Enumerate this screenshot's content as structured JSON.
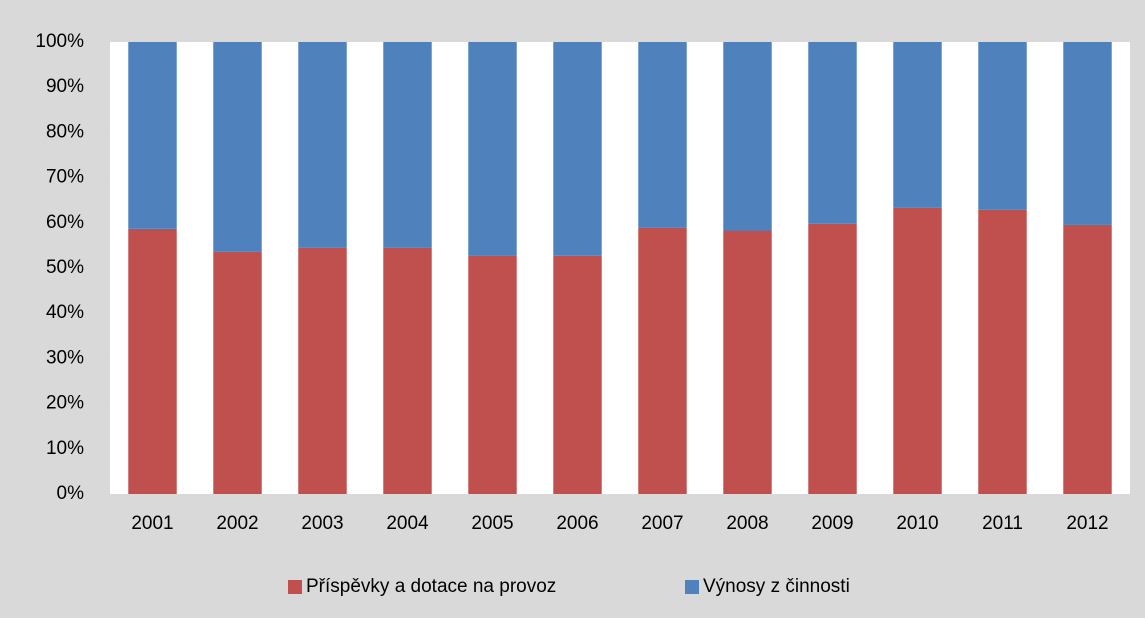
{
  "chart_data": {
    "type": "stacked_bar",
    "categories": [
      "2001",
      "2002",
      "2003",
      "2004",
      "2005",
      "2006",
      "2007",
      "2008",
      "2009",
      "2010",
      "2011",
      "2012"
    ],
    "series": [
      {
        "name": "Příspěvky a dotace na provoz",
        "color": "#c0504d",
        "values": [
          58.7,
          53.7,
          54.6,
          54.6,
          52.8,
          52.7,
          59.0,
          58.3,
          59.8,
          63.3,
          62.9,
          59.6
        ]
      },
      {
        "name": "Výnosy z činnosti",
        "color": "#4f81bd",
        "values": [
          41.3,
          46.3,
          45.4,
          45.4,
          47.2,
          47.3,
          41.0,
          41.7,
          40.2,
          36.7,
          37.1,
          40.4
        ]
      }
    ],
    "ylim": [
      0,
      100
    ],
    "yticks": [
      {
        "value": 0,
        "label": "0%"
      },
      {
        "value": 10,
        "label": "10%"
      },
      {
        "value": 20,
        "label": "20%"
      },
      {
        "value": 30,
        "label": "30%"
      },
      {
        "value": 40,
        "label": "40%"
      },
      {
        "value": 50,
        "label": "50%"
      },
      {
        "value": 60,
        "label": "60%"
      },
      {
        "value": 70,
        "label": "70%"
      },
      {
        "value": 80,
        "label": "80%"
      },
      {
        "value": 90,
        "label": "90%"
      },
      {
        "value": 100,
        "label": "100%"
      }
    ],
    "legend": "bottom"
  }
}
